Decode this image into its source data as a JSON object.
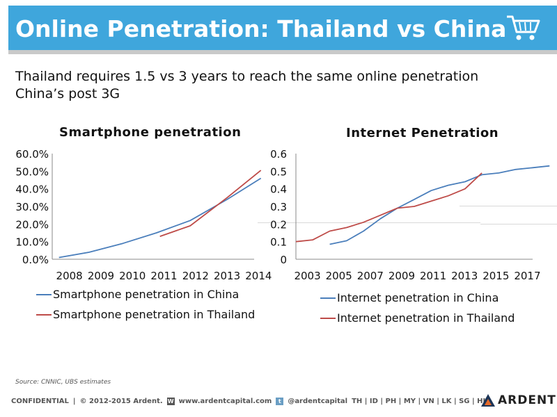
{
  "header": {
    "title": "Online Penetration: Thailand vs China",
    "cart_icon": "shopping-cart-icon"
  },
  "subtitle_lines": [
    "Thailand requires 1.5 vs 3 years to reach the same online penetration",
    "China’s post 3G"
  ],
  "colors": {
    "china": "#4a7ebb",
    "thailand": "#be4b48",
    "title_bar": "#3fa6dc"
  },
  "chart_data": [
    {
      "type": "line",
      "title": "Smartphone penetration",
      "x_ticks": [
        "2008",
        "2009",
        "2010",
        "2011",
        "2012",
        "2013",
        "2014"
      ],
      "y_ticks": [
        "60.0%",
        "50.0%",
        "40.0%",
        "30.0%",
        "20.0%",
        "10.0%",
        "0.0%"
      ],
      "ylim": [
        0,
        0.6
      ],
      "xlim": [
        2008,
        2014
      ],
      "legend_position": "bottom",
      "series": [
        {
          "name": "Smartphone penetration in China",
          "color": "#4a7ebb",
          "points": [
            [
              2008.2,
              0.01
            ],
            [
              2009.1,
              0.04
            ],
            [
              2010.1,
              0.09
            ],
            [
              2011.1,
              0.15
            ],
            [
              2012.1,
              0.22
            ],
            [
              2013.2,
              0.34
            ],
            [
              2014.2,
              0.46
            ]
          ]
        },
        {
          "name": "Smartphone penetration in Thailand",
          "color": "#be4b48",
          "points": [
            [
              2011.2,
              0.13
            ],
            [
              2012.1,
              0.19
            ],
            [
              2013.2,
              0.35
            ],
            [
              2014.2,
              0.505
            ]
          ]
        }
      ]
    },
    {
      "type": "line",
      "title": "Internet Penetration",
      "x_ticks": [
        "2003",
        "2005",
        "2007",
        "2009",
        "2011",
        "2013",
        "2015",
        "2017"
      ],
      "y_ticks": [
        "0.6",
        "0.5",
        "0.4",
        "0.3",
        "0.2",
        "0.1",
        "0"
      ],
      "ylim": [
        0,
        0.6
      ],
      "xlim": [
        2003,
        2017
      ],
      "legend_position": "bottom",
      "series": [
        {
          "name": "Internet penetration in China",
          "color": "#4a7ebb",
          "points": [
            [
              2005,
              0.085
            ],
            [
              2006,
              0.105
            ],
            [
              2007,
              0.16
            ],
            [
              2008,
              0.23
            ],
            [
              2009,
              0.29
            ],
            [
              2010,
              0.34
            ],
            [
              2011,
              0.39
            ],
            [
              2012,
              0.42
            ],
            [
              2013,
              0.44
            ],
            [
              2014,
              0.48
            ],
            [
              2015,
              0.49
            ],
            [
              2016,
              0.51
            ],
            [
              2017,
              0.52
            ],
            [
              2018,
              0.53
            ]
          ]
        },
        {
          "name": "Internet penetration in Thailand",
          "color": "#be4b48",
          "points": [
            [
              2003,
              0.1
            ],
            [
              2004,
              0.11
            ],
            [
              2005,
              0.16
            ],
            [
              2006,
              0.18
            ],
            [
              2007,
              0.21
            ],
            [
              2008,
              0.25
            ],
            [
              2009,
              0.29
            ],
            [
              2010,
              0.3
            ],
            [
              2011,
              0.33
            ],
            [
              2012,
              0.36
            ],
            [
              2013,
              0.4
            ],
            [
              2014,
              0.49
            ]
          ]
        }
      ]
    }
  ],
  "source": "Source: CNNIC, UBS estimates",
  "footer": {
    "confidential": "CONFIDENTIAL",
    "sep": "|",
    "copyright": "© 2012-2015 Ardent.",
    "w_icon": "W",
    "website": "www.ardentcapital.com",
    "t_icon": "t",
    "twitter": "@ardentcapital",
    "countries": "TH | ID | PH | MY | VN | LK | SG | HK",
    "logo_text": "ARDENT"
  }
}
